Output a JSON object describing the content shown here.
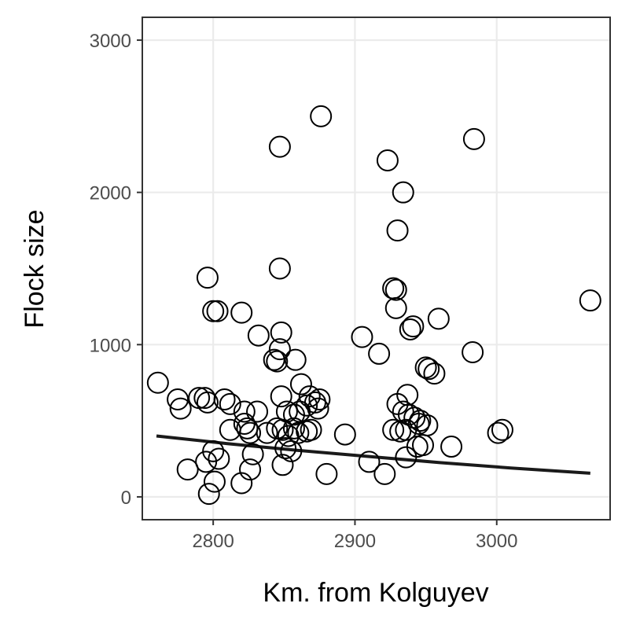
{
  "chart_data": {
    "type": "scatter",
    "xlabel": "Km. from Kolguyev",
    "ylabel": "Flock size",
    "xlim": [
      2750,
      3080
    ],
    "ylim": [
      -150,
      3150
    ],
    "x_ticks": [
      2800,
      2900,
      3000
    ],
    "y_ticks": [
      0,
      1000,
      2000,
      3000
    ],
    "x_tick_labels": [
      "2800",
      "2900",
      "3000"
    ],
    "y_tick_labels": [
      "0",
      "1000",
      "2000",
      "3000"
    ],
    "grid": true,
    "legend": "none",
    "series": [
      {
        "marker": "open-circle",
        "color": "#000000",
        "points": [
          [
            2876,
            2500
          ],
          [
            2847,
            2300
          ],
          [
            2984,
            2350
          ],
          [
            2923,
            2210
          ],
          [
            2934,
            2000
          ],
          [
            2930,
            1750
          ],
          [
            2847,
            1500
          ],
          [
            2796,
            1440
          ],
          [
            2927,
            1370
          ],
          [
            2929,
            1360
          ],
          [
            2929,
            1240
          ],
          [
            3066,
            1290
          ],
          [
            2800,
            1220
          ],
          [
            2803,
            1220
          ],
          [
            2820,
            1210
          ],
          [
            2959,
            1170
          ],
          [
            2941,
            1120
          ],
          [
            2939,
            1100
          ],
          [
            2832,
            1060
          ],
          [
            2905,
            1050
          ],
          [
            2848,
            1080
          ],
          [
            2847,
            970
          ],
          [
            2917,
            940
          ],
          [
            2983,
            950
          ],
          [
            2843,
            900
          ],
          [
            2845,
            890
          ],
          [
            2858,
            900
          ],
          [
            2950,
            850
          ],
          [
            2952,
            840
          ],
          [
            2956,
            810
          ],
          [
            2761,
            750
          ],
          [
            2862,
            740
          ],
          [
            2868,
            660
          ],
          [
            2872,
            620
          ],
          [
            2875,
            640
          ],
          [
            2874,
            580
          ],
          [
            2775,
            640
          ],
          [
            2777,
            580
          ],
          [
            2790,
            650
          ],
          [
            2794,
            650
          ],
          [
            2796,
            620
          ],
          [
            2808,
            640
          ],
          [
            2812,
            610
          ],
          [
            2822,
            560
          ],
          [
            2831,
            560
          ],
          [
            2848,
            660
          ],
          [
            2852,
            560
          ],
          [
            2857,
            540
          ],
          [
            2861,
            560
          ],
          [
            2866,
            600
          ],
          [
            2937,
            670
          ],
          [
            2930,
            610
          ],
          [
            2934,
            560
          ],
          [
            2938,
            540
          ],
          [
            2942,
            520
          ],
          [
            2946,
            500
          ],
          [
            2945,
            480
          ],
          [
            2951,
            470
          ],
          [
            2812,
            440
          ],
          [
            2822,
            480
          ],
          [
            2824,
            450
          ],
          [
            2826,
            420
          ],
          [
            2838,
            420
          ],
          [
            2845,
            450
          ],
          [
            2849,
            440
          ],
          [
            2853,
            400
          ],
          [
            2857,
            450
          ],
          [
            2860,
            420
          ],
          [
            2866,
            430
          ],
          [
            2869,
            440
          ],
          [
            2893,
            410
          ],
          [
            2927,
            440
          ],
          [
            2932,
            430
          ],
          [
            2936,
            440
          ],
          [
            3001,
            420
          ],
          [
            3004,
            440
          ],
          [
            2800,
            300
          ],
          [
            2795,
            230
          ],
          [
            2804,
            250
          ],
          [
            2828,
            280
          ],
          [
            2851,
            320
          ],
          [
            2855,
            300
          ],
          [
            2849,
            210
          ],
          [
            2910,
            230
          ],
          [
            2944,
            330
          ],
          [
            2948,
            340
          ],
          [
            2968,
            330
          ],
          [
            2936,
            260
          ],
          [
            2782,
            180
          ],
          [
            2826,
            180
          ],
          [
            2880,
            150
          ],
          [
            2921,
            150
          ],
          [
            2801,
            100
          ],
          [
            2820,
            90
          ],
          [
            2797,
            20
          ]
        ]
      }
    ],
    "trend_line": {
      "type": "fitted curve",
      "color": "#1a1a1a",
      "x": [
        2760,
        2810,
        2860,
        2910,
        2960,
        3010,
        3066
      ],
      "y": [
        400,
        350,
        305,
        265,
        225,
        190,
        155
      ]
    }
  }
}
